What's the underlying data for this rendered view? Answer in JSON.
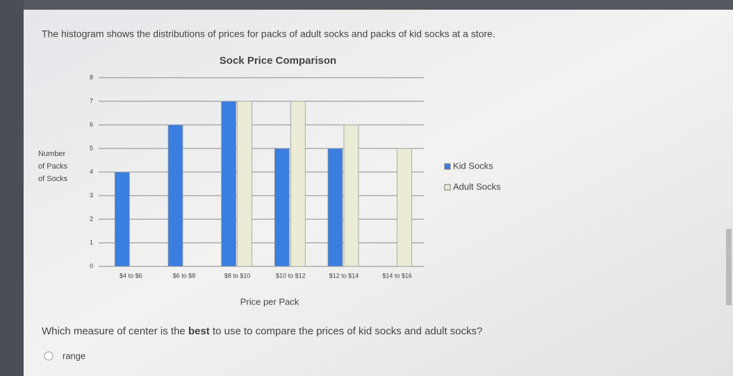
{
  "intro": "The histogram shows the distributions of prices for packs of adult socks and packs of kid socks at a store.",
  "chart_data": {
    "type": "bar",
    "title": "Sock Price Comparison",
    "y_label": [
      "Number",
      "of Packs",
      "of Socks"
    ],
    "x_label": "Price per Pack",
    "categories": [
      "$4 to $6",
      "$6 to $8",
      "$8 to $10",
      "$10 to $12",
      "$12 to $14",
      "$14 to $16"
    ],
    "series": [
      {
        "name": "Kid Socks",
        "color": "#3a7ee0",
        "values": [
          4,
          6,
          7,
          5,
          5,
          0
        ]
      },
      {
        "name": "Adult Socks",
        "color": "#ebebd6",
        "values": [
          0,
          0,
          7,
          7,
          6,
          5
        ]
      }
    ],
    "ylim": [
      0,
      8
    ],
    "yticks": [
      0,
      1,
      2,
      3,
      4,
      5,
      6,
      7,
      8
    ],
    "grid": true,
    "legend": "right"
  },
  "question": [
    "Which measure of center is the ",
    "best",
    " to use to compare the prices of kid socks and adult socks?"
  ],
  "options": [
    "range"
  ]
}
